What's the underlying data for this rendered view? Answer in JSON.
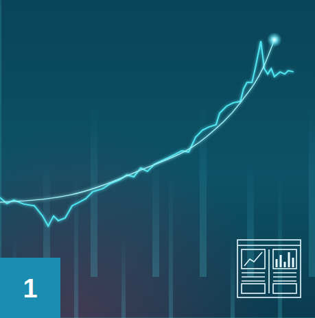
{
  "chart_data": {
    "type": "line",
    "xlim": [
      0,
      100
    ],
    "ylim": [
      0,
      100
    ],
    "tick_labels": false,
    "annotations": [
      {
        "text": "1"
      }
    ],
    "series": [
      {
        "color": "#4fe6f2",
        "line_style": "solid",
        "x": [
          0,
          2.2,
          4.4,
          7.6,
          10.9,
          13.5,
          15.3,
          17,
          18.5,
          20.7,
          22.9,
          25.1,
          27.2,
          29.4,
          32.7,
          34.9,
          38.1,
          40.3,
          42.5,
          44.7,
          46.8,
          49,
          51.2,
          53.4,
          55.6,
          57.7,
          59.9,
          62.1,
          64.3,
          66.4,
          68.6,
          69.7,
          71.9,
          74.1,
          76.3,
          77.3,
          78.4,
          80,
          81,
          82.8,
          83.9,
          85,
          86.1,
          87.1,
          88.9,
          90.4,
          91.5,
          93.2
        ],
        "values": [
          37.9,
          36.0,
          37.1,
          35.8,
          35.3,
          32.1,
          28.9,
          32.1,
          30.6,
          31.5,
          35.3,
          36.4,
          37.5,
          39.7,
          40.7,
          42.2,
          43.5,
          45.0,
          44.4,
          47.2,
          46.1,
          48.3,
          49.4,
          50.4,
          51.5,
          52.6,
          52.2,
          56.9,
          59.1,
          60.1,
          60.8,
          64.4,
          66.6,
          67.7,
          68.1,
          72.0,
          74.1,
          74.1,
          78.4,
          87.1,
          78.4,
          76.7,
          78.4,
          75.9,
          77.4,
          76.7,
          77.8,
          77.4
        ]
      },
      {
        "color": "#9ff3f7",
        "line_style": "solid",
        "marker": "glow",
        "x": [
          0,
          21.8,
          43.6,
          65.4,
          76.3,
          83.9,
          87.1
        ],
        "values": [
          36.4,
          38.6,
          46.1,
          56.9,
          67.7,
          79.5,
          87.5
        ]
      }
    ]
  }
}
